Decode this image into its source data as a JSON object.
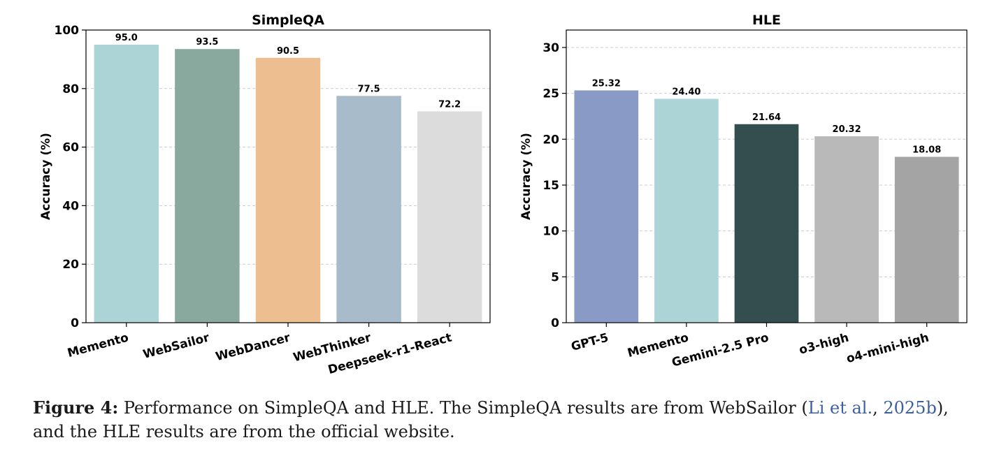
{
  "chart_data": [
    {
      "type": "bar",
      "title": "SimpleQA",
      "xlabel": "",
      "ylabel": "Accuracy (%)",
      "ylim": [
        0,
        100
      ],
      "yticks": [
        0,
        20,
        40,
        60,
        80,
        100
      ],
      "grid": "horizontal dashed",
      "categories": [
        "Memento",
        "WebSailor",
        "WebDancer",
        "WebThinker",
        "Deepseek-r1-React"
      ],
      "values": [
        95.0,
        93.5,
        90.5,
        77.5,
        72.2
      ],
      "value_labels": [
        "95.0",
        "93.5",
        "90.5",
        "77.5",
        "72.2"
      ],
      "colors": [
        "#acd4d6",
        "#89a89e",
        "#edbe90",
        "#a8bbcb",
        "#dcdcdc"
      ]
    },
    {
      "type": "bar",
      "title": "HLE",
      "xlabel": "",
      "ylabel": "Accuracy (%)",
      "ylim": [
        0,
        31.9
      ],
      "yticks": [
        0,
        5,
        10,
        15,
        20,
        25,
        30
      ],
      "grid": "horizontal dashed",
      "categories": [
        "GPT-5",
        "Memento",
        "Gemini-2.5 Pro",
        "o3-high",
        "o4-mini-high"
      ],
      "values": [
        25.32,
        24.4,
        21.64,
        20.32,
        18.08
      ],
      "value_labels": [
        "25.32",
        "24.40",
        "21.64",
        "20.32",
        "18.08"
      ],
      "colors": [
        "#8a9ac6",
        "#acd4d6",
        "#344e4f",
        "#b9b9b9",
        "#a4a4a4"
      ]
    }
  ],
  "caption": {
    "label": "Figure 4:",
    "text_1": " Performance on SimpleQA and HLE. The SimpleQA results are from WebSailor (",
    "cite_author": "Li et al.",
    "cite_sep": ", ",
    "cite_year": "2025b",
    "text_2": "), and the HLE results are from the official website."
  }
}
